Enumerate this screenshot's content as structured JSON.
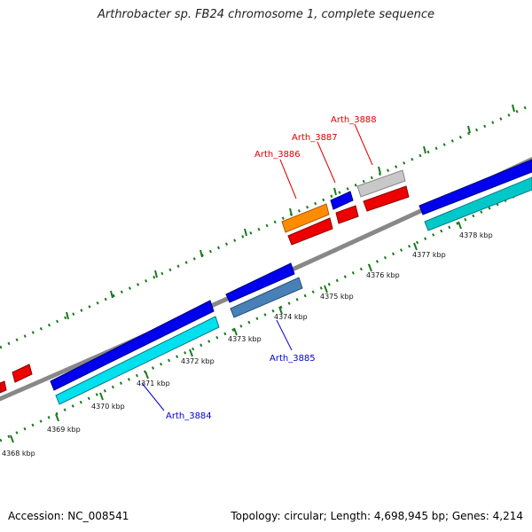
{
  "title": "Arthrobacter sp. FB24 chromosome 1, complete sequence",
  "footer": {
    "accession": "Accession: NC_008541",
    "summary": "Topology: circular; Length: 4,698,945 bp; Genes: 4,214"
  },
  "kbp_labels": [
    "4368 kbp",
    "4369 kbp",
    "4370 kbp",
    "4371 kbp",
    "4372 kbp",
    "4373 kbp",
    "4374 kbp",
    "4375 kbp",
    "4376 kbp",
    "4377 kbp",
    "4378 kbp"
  ],
  "gene_labels": {
    "arth_3884": "Arth_3884",
    "arth_3885": "Arth_3885",
    "arth_3886": "Arth_3886",
    "arth_3887": "Arth_3887",
    "arth_3888": "Arth_3888"
  },
  "colors": {
    "forward_cds": "#0000ee",
    "reverse_cds": "#00e0ee",
    "highlight_red": "#ee0000",
    "highlight_orange": "#ff8c00",
    "highlight_grey": "#c8c8c8",
    "steel_blue": "#4a80b8",
    "backbone": "#888888",
    "tick_green": "#1a7a1a",
    "label_red": "#dd0000",
    "label_blue": "#0000cc"
  }
}
